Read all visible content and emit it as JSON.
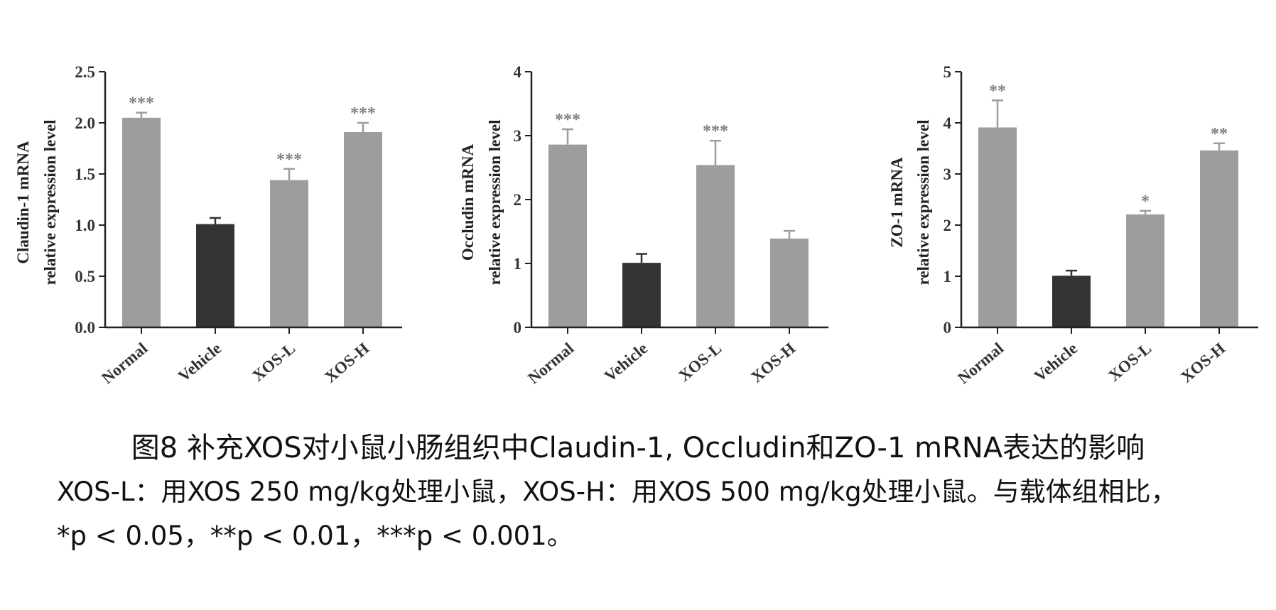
{
  "chart_data": [
    {
      "type": "bar",
      "ylabel": [
        "Claudin-1 mRNA",
        "relative expression level"
      ],
      "categories": [
        "Normal",
        "Vehicle",
        "XOS-L",
        "XOS-H"
      ],
      "values": [
        2.05,
        1.01,
        1.44,
        1.91
      ],
      "errors": [
        0.05,
        0.06,
        0.11,
        0.09
      ],
      "significance": [
        "***",
        "",
        "***",
        "***"
      ],
      "ylim": [
        0,
        2.5
      ],
      "yticks": [
        "0.0",
        "0.5",
        "1.0",
        "1.5",
        "2.0",
        "2.5"
      ],
      "ytick_values": [
        0,
        0.5,
        1.0,
        1.5,
        2.0,
        2.5
      ],
      "colors": [
        "#9d9d9f",
        "#333333",
        "#9d9d9f",
        "#9d9d9f"
      ]
    },
    {
      "type": "bar",
      "ylabel": [
        "Occludin mRNA",
        "relative expression level"
      ],
      "categories": [
        "Normal",
        "Vehicle",
        "XOS-L",
        "XOS-H"
      ],
      "values": [
        2.86,
        1.01,
        2.54,
        1.39
      ],
      "errors": [
        0.24,
        0.14,
        0.38,
        0.12
      ],
      "significance": [
        "***",
        "",
        "***",
        ""
      ],
      "ylim": [
        0,
        4
      ],
      "yticks": [
        "0",
        "1",
        "2",
        "3",
        "4"
      ],
      "ytick_values": [
        0,
        1,
        2,
        3,
        4
      ],
      "colors": [
        "#9d9d9f",
        "#333333",
        "#9d9d9f",
        "#9d9d9f"
      ]
    },
    {
      "type": "bar",
      "ylabel": [
        "ZO-1 mRNA",
        "relative expression level"
      ],
      "categories": [
        "Normal",
        "Vehicle",
        "XOS-L",
        "XOS-H"
      ],
      "values": [
        3.91,
        1.01,
        2.21,
        3.46
      ],
      "errors": [
        0.53,
        0.1,
        0.07,
        0.14
      ],
      "significance": [
        "**",
        "",
        "*",
        "**"
      ],
      "ylim": [
        0,
        5
      ],
      "yticks": [
        "0",
        "1",
        "2",
        "3",
        "4",
        "5"
      ],
      "ytick_values": [
        0,
        1,
        2,
        3,
        4,
        5
      ],
      "colors": [
        "#9d9d9f",
        "#333333",
        "#9d9d9f",
        "#9d9d9f"
      ]
    }
  ],
  "caption": {
    "title": "图8 补充XOS对小鼠小肠组织中Claudin-1, Occludin和ZO-1 mRNA表达的影响",
    "note_line1": "XOS-L：用XOS 250 mg/kg处理小鼠，XOS-H：用XOS 500 mg/kg处理小鼠。与载体组相比，",
    "note_line2": "*p < 0.05，**p < 0.01，***p < 0.001。"
  }
}
